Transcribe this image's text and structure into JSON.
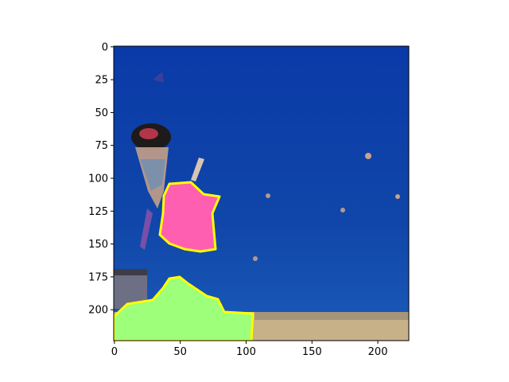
{
  "chart_data": {
    "type": "heatmap",
    "title": "",
    "xlabel": "",
    "ylabel": "",
    "xlim": [
      -0.5,
      223.5
    ],
    "ylim": [
      223.5,
      -0.5
    ],
    "x_ticks": [
      0,
      50,
      100,
      150,
      200
    ],
    "y_ticks": [
      0,
      25,
      50,
      75,
      100,
      125,
      150,
      175,
      200
    ],
    "grid": false,
    "legend": "none",
    "image_content": "photo of kites over a beach with segmentation overlays",
    "overlays": [
      {
        "label": "",
        "color": "#ff5fb0",
        "outline": "#ffff00"
      },
      {
        "label": "",
        "color": "#9dff7a",
        "outline": "#ffff00"
      }
    ],
    "colors": {
      "sky_top": "#0d3aa6",
      "sky_bottom": "#174fb4",
      "sand": "#c9b48c",
      "kite_magenta": "#ff5fb0",
      "crowd_green": "#9dff7a",
      "outline": "#ffff00"
    }
  }
}
